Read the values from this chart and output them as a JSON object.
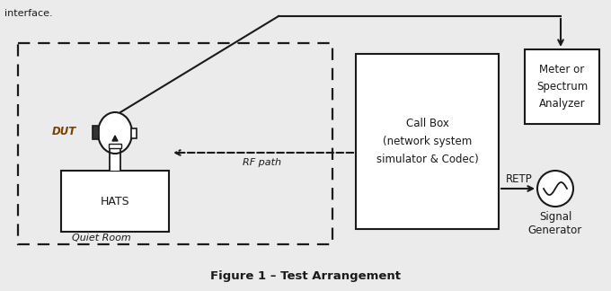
{
  "fig_width": 6.8,
  "fig_height": 3.24,
  "dpi": 100,
  "bg_color": "#ebebeb",
  "title": "Figure 1 – Test Arrangement",
  "title_fontsize": 9.5,
  "header_text": "interface.",
  "quiet_room_label": "Quiet Room",
  "hats_label": "HATS",
  "dut_label": "DUT",
  "rf_path_label": "RF path",
  "call_box_label": "Call Box\n(network system\nsimulator & Codec)",
  "meter_label": "Meter or\nSpectrum\nAnalyzer",
  "retp_label": "RETP",
  "signal_gen_label": "Signal\nGenerator",
  "black": "#1a1a1a",
  "dut_color": "#7B3F00"
}
